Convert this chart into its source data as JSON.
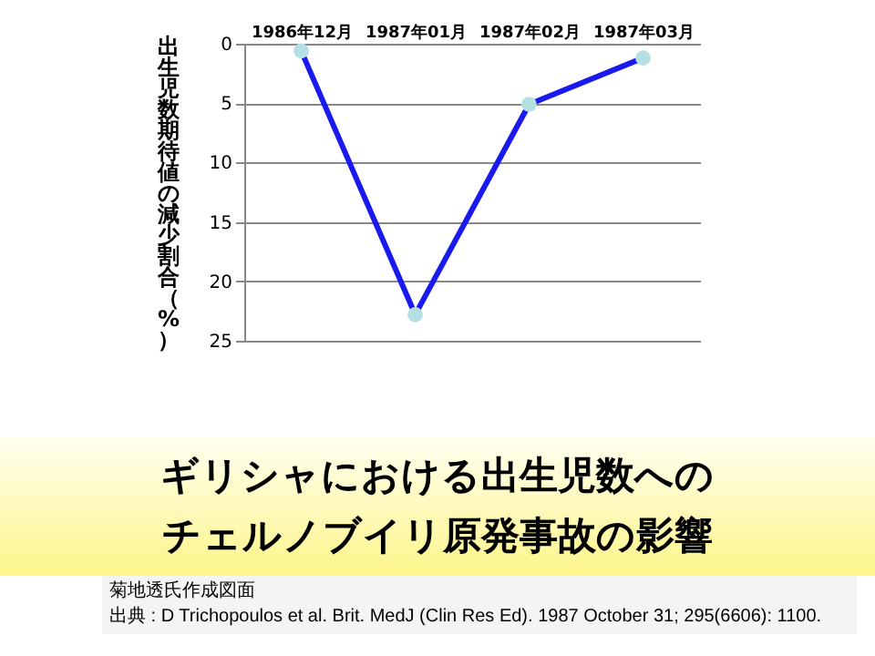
{
  "chart_data": {
    "type": "line",
    "title": "ギリシャにおける出生児数へのチェルノブイリ原発事故の影響",
    "ylabel": "出生児数期待値の減少割合（%）",
    "categories": [
      "1986年12月",
      "1987年01月",
      "1987年02月",
      "1987年03月"
    ],
    "series": [
      {
        "color": "#1a1aee",
        "values": [
          0.6,
          22.8,
          5.1,
          1.2
        ]
      }
    ],
    "ylim": [
      25,
      0
    ],
    "yticks": [
      0,
      5,
      10,
      15,
      20,
      25
    ],
    "grid": "y",
    "marker": "circle",
    "line_style": "solid",
    "annotations": [
      "菊地透氏作成図面",
      "出典 : D Trichopoulos et al. Brit. MedJ (Clin Res Ed). 1987 October 31; 295(6606): 1100."
    ]
  }
}
